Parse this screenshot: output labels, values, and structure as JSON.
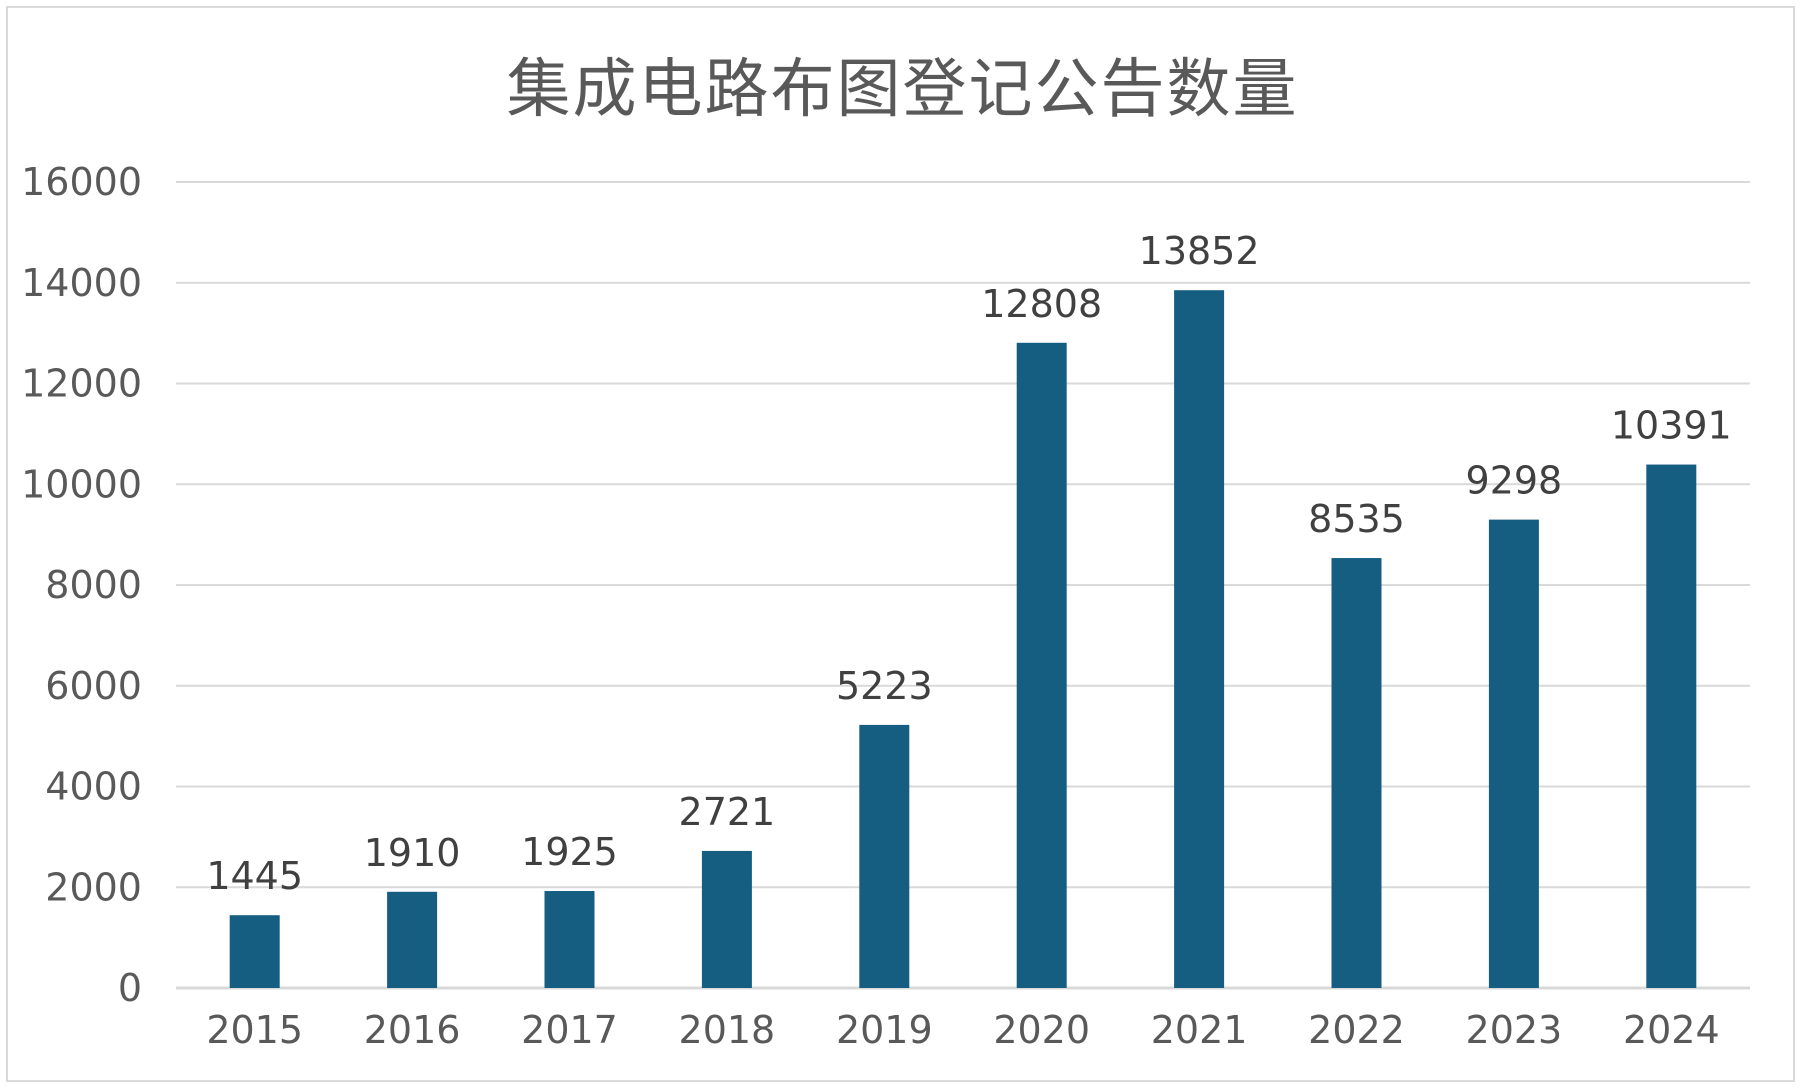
{
  "chart_data": {
    "type": "bar",
    "title": "集成电路布图登记公告数量",
    "categories": [
      "2015",
      "2016",
      "2017",
      "2018",
      "2019",
      "2020",
      "2021",
      "2022",
      "2023",
      "2024"
    ],
    "values": [
      1445,
      1910,
      1925,
      2721,
      5223,
      12808,
      13852,
      8535,
      9298,
      10391
    ],
    "ylim": [
      0,
      16000
    ],
    "yticks": [
      0,
      2000,
      4000,
      6000,
      8000,
      10000,
      12000,
      14000,
      16000
    ],
    "xlabel": "",
    "ylabel": "",
    "grid": true,
    "legend": "none",
    "bar_color": "#155e82",
    "grid_color": "#d9d9d9"
  }
}
